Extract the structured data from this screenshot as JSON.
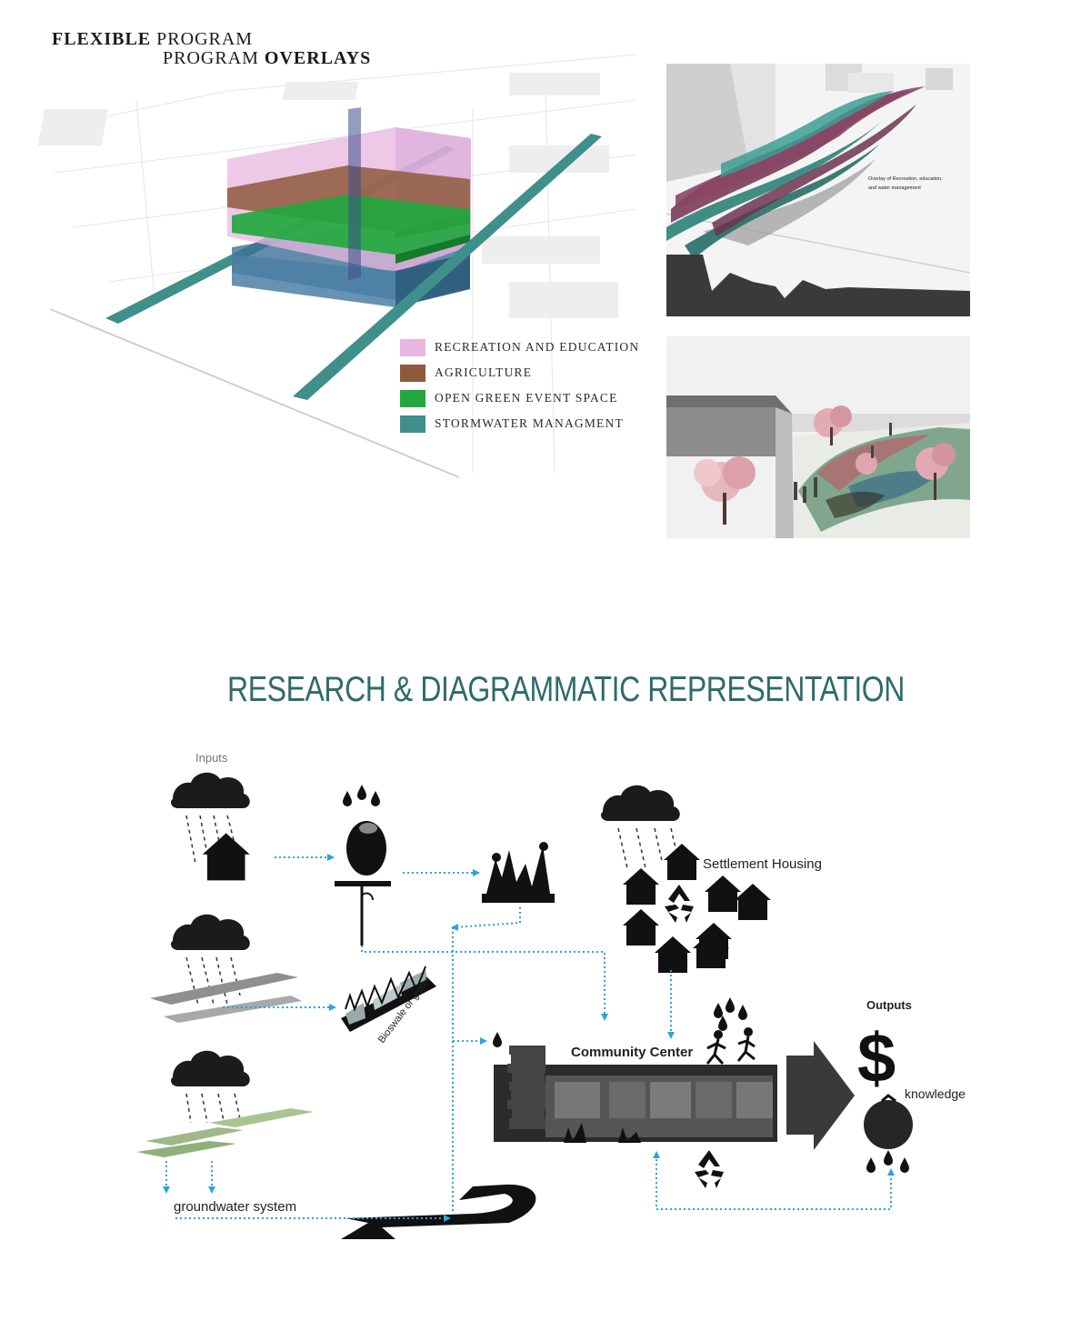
{
  "header": {
    "title_line1_bold": "FLEXIBLE",
    "title_line1_rest": " PROGRAM",
    "title_line2_rest": "PROGRAM ",
    "title_line2_bold": "OVERLAYS"
  },
  "legend": {
    "items": [
      {
        "label": "Recreation and Education",
        "color": "#e8b7df"
      },
      {
        "label": "Agriculture",
        "color": "#8e5a3c"
      },
      {
        "label": "Open Green Event Space",
        "color": "#22a83f"
      },
      {
        "label": "Stormwater Managment",
        "color": "#3f8f8b"
      }
    ]
  },
  "render_top": {
    "caption_line1": "Overlay of Recreation, education,",
    "caption_line2": "and water management"
  },
  "section": {
    "title": "RESEARCH & DIAGRAMMATIC REPRESENTATION"
  },
  "diagram": {
    "inputs_label": "Inputs",
    "settlement_label": "Settlement Housing",
    "bioswale_label": "Bioswale or gutter",
    "community_label": "Community Center",
    "outputs_label": "Outputs",
    "knowledge_label": "knowledge",
    "groundwater_label": "groundwater system",
    "dollar_symbol": "$",
    "arrow_color": "#2aa4dd"
  }
}
